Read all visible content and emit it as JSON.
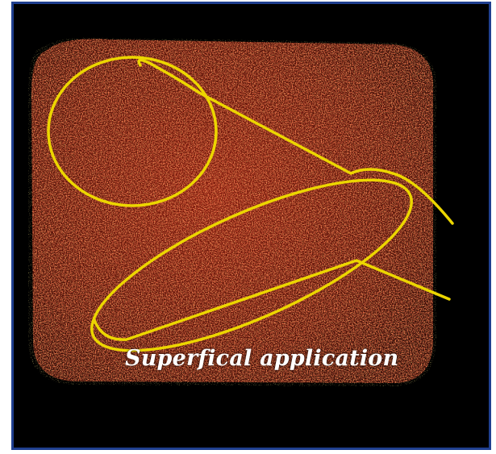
{
  "caption": "Superfical application",
  "colors": {
    "background": "#000000",
    "frame_border": "#1f3f8f",
    "speckle_primary": "#b3200f",
    "speckle_secondary": "#e8cc40",
    "annotation_stroke": "#ecd600",
    "caption_text": "#ffffff"
  },
  "annotations": [
    "circle-outline",
    "ellipse-outline",
    "pointer-line-upper",
    "pointer-line-lower"
  ]
}
